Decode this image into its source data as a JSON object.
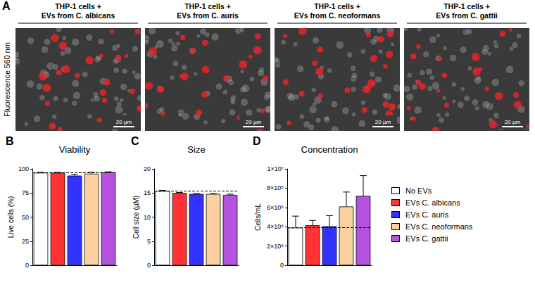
{
  "panel_a": {
    "panel": "A",
    "ylabel": "Fluorescence 560 nm",
    "images": [
      {
        "title": "THP-1 cells + EVs from C. albicans",
        "scale_bar": "20 µm"
      },
      {
        "title": "THP-1 cells + EVs from C. auris",
        "scale_bar": "20 µm"
      },
      {
        "title": "THP-1 cells + EVs from C. neoformans",
        "scale_bar": "20 µm"
      },
      {
        "title": "THP-1 cells + EVs from C. gattii",
        "scale_bar": "20 µm"
      }
    ]
  },
  "chart_data": [
    {
      "panel": "B",
      "type": "bar",
      "title": "Viability",
      "ylabel": "Live cells (%)",
      "categories": [
        "No EVs",
        "EVs C. albicans",
        "EVs C. auris",
        "EVs C. neoformans",
        "EVs C. gattii"
      ],
      "colors": [
        "#ffffff",
        "#ff3333",
        "#3333ff",
        "#fcd0a1",
        "#b552e0"
      ],
      "values": [
        96,
        96,
        93,
        95,
        96.5
      ],
      "errors": [
        0.5,
        0.5,
        1.5,
        1.5,
        0.5
      ],
      "ylim": [
        0,
        100
      ],
      "yticks": [
        0,
        25,
        50,
        75,
        100
      ],
      "grid": false,
      "tick_labels": "y",
      "legend": "right"
    },
    {
      "panel": "C",
      "type": "bar",
      "title": "Size",
      "ylabel": "Cell size (µM)",
      "categories": [
        "No EVs",
        "EVs C. albicans",
        "EVs C. auris",
        "EVs C. neoformans",
        "EVs C. gattii"
      ],
      "colors": [
        "#ffffff",
        "#ff3333",
        "#3333ff",
        "#fcd0a1",
        "#b552e0"
      ],
      "values": [
        15.4,
        15.0,
        14.8,
        14.8,
        14.6
      ],
      "errors": [
        0.15,
        0.1,
        0.1,
        0.1,
        0.15
      ],
      "ylim": [
        0,
        20
      ],
      "yticks": [
        0,
        5,
        10,
        15,
        20
      ],
      "grid": false,
      "tick_labels": "y",
      "legend": "right"
    },
    {
      "panel": "D",
      "type": "bar",
      "title": "Concentration",
      "ylabel": "Cells/mL",
      "categories": [
        "No EVs",
        "EVs C. albicans",
        "EVs C. auris",
        "EVs C. neoformans",
        "EVs C. gattii"
      ],
      "colors": [
        "#ffffff",
        "#ff3333",
        "#3333ff",
        "#fcd0a1",
        "#b552e0"
      ],
      "values": [
        3900000,
        4150000,
        4050000,
        6100000,
        7200000
      ],
      "errors": [
        1200000,
        500000,
        1100000,
        1500000,
        2100000
      ],
      "ylim": [
        0,
        10000000
      ],
      "yticks": [
        0,
        {
          "value": 2000000,
          "label": "2×10⁶"
        },
        {
          "value": 4000000,
          "label": "4×10⁶"
        },
        {
          "value": 6000000,
          "label": "6×10⁶"
        },
        {
          "value": 8000000,
          "label": "8×10⁶"
        },
        {
          "value": 10000000,
          "label": "1×10⁷"
        }
      ],
      "grid": false,
      "tick_labels": "y",
      "legend": "right"
    }
  ]
}
